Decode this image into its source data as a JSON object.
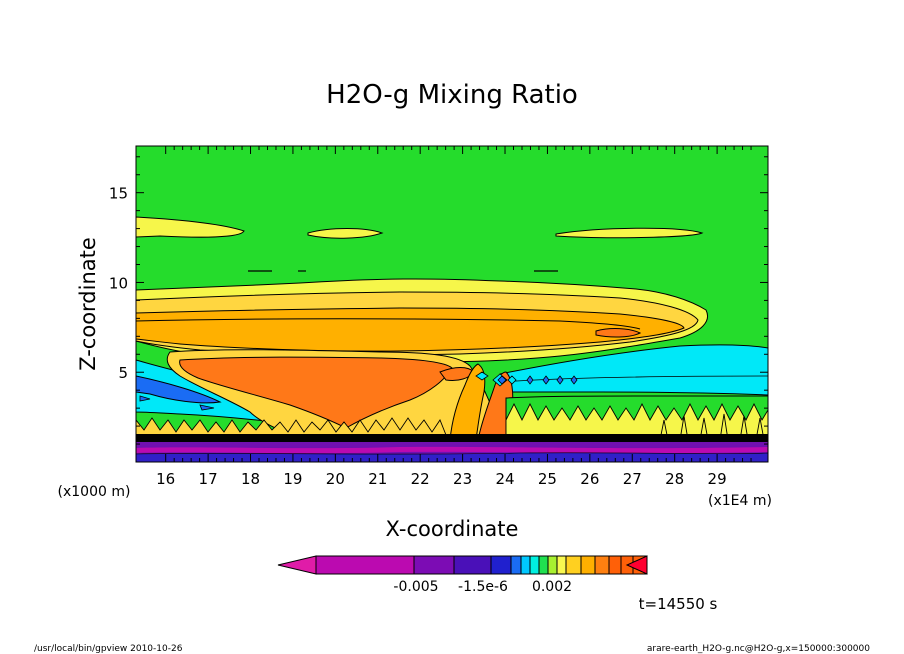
{
  "chart_data": {
    "type": "contour",
    "title": "H2O-g Mixing Ratio",
    "xlabel": "X-coordinate",
    "ylabel": "Z-coordinate",
    "x_scale_note": "(x1E4 m)",
    "y_scale_note": "(x1000 m)",
    "xlim": [
      15.3,
      30.2
    ],
    "ylim": [
      0,
      17.6
    ],
    "x_ticks": [
      "16",
      "17",
      "18",
      "19",
      "20",
      "21",
      "22",
      "23",
      "24",
      "25",
      "26",
      "27",
      "28",
      "29"
    ],
    "y_ticks": [
      "5",
      "10",
      "15"
    ],
    "time_label": "t=14550 s",
    "colorbar": {
      "labels": [
        "-0.005",
        "-1.5e-6",
        "0.002"
      ],
      "colors": [
        "#e01ca8",
        "#bb0ab0",
        "#bb0ab0",
        "#bb0ab0",
        "#7c0cb4",
        "#7c0cb4",
        "#4a10b8",
        "#2020ce",
        "#1a6cf4",
        "#00c8ff",
        "#00f0e0",
        "#20e050",
        "#a8f030",
        "#f8f850",
        "#ffd020",
        "#ffb000",
        "#ff8010",
        "#ff6008",
        "#ff0030"
      ]
    },
    "regions": [
      {
        "name": "background",
        "color": "#25dc2c"
      },
      {
        "name": "upper-moist-layer",
        "color": "#f6f64a"
      },
      {
        "name": "anvil-outer",
        "color": "#ffd640"
      },
      {
        "name": "anvil-core",
        "color": "#ffb000"
      },
      {
        "name": "plume-core",
        "color": "#ff7818"
      },
      {
        "name": "cyan-band",
        "color": "#00e8f8"
      },
      {
        "name": "blue-band",
        "color": "#1a6cf4"
      },
      {
        "name": "surface-band",
        "color": "#7010b0"
      }
    ]
  },
  "footer": {
    "left": "/usr/local/bin/gpview  2010-10-26",
    "right": "arare-earth_H2O-g.nc@H2O-g,x=150000:300000"
  }
}
